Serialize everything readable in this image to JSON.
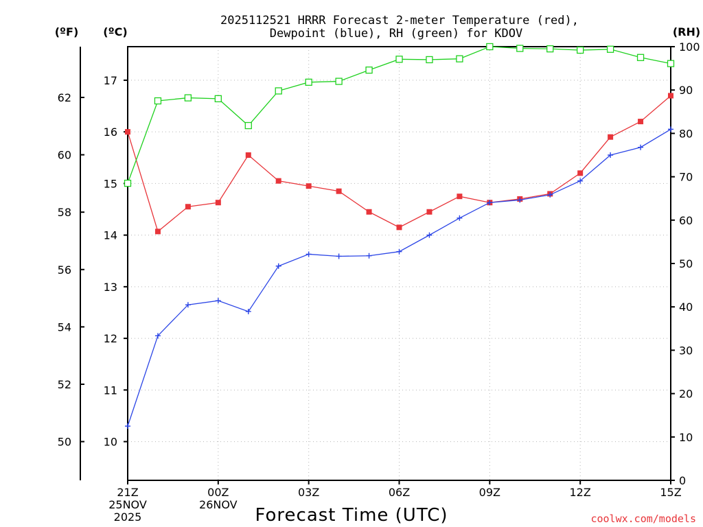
{
  "chart_data": {
    "type": "line",
    "title_lines": [
      "2025112521 HRRR Forecast 2-meter Temperature (red),",
      "Dewpoint (blue), RH (green) for KDOV"
    ],
    "unit_labels": {
      "f": "(ºF)",
      "c": "(ºC)",
      "rh": "(RH)"
    },
    "xlabel": "Forecast Time (UTC)",
    "credit": "coolwx.com/models",
    "x": [
      0,
      1,
      2,
      3,
      4,
      5,
      6,
      7,
      8,
      9,
      10,
      11,
      12,
      13,
      14,
      15,
      16,
      17,
      18
    ],
    "xlim": [
      0,
      18
    ],
    "x_ticks": [
      {
        "x": 0,
        "lines": [
          "21Z",
          "25NOV",
          "2025"
        ]
      },
      {
        "x": 3,
        "lines": [
          "00Z",
          "26NOV"
        ]
      },
      {
        "x": 6,
        "lines": [
          "03Z"
        ]
      },
      {
        "x": 9,
        "lines": [
          "06Z"
        ]
      },
      {
        "x": 12,
        "lines": [
          "09Z"
        ]
      },
      {
        "x": 15,
        "lines": [
          "12Z"
        ]
      },
      {
        "x": 18,
        "lines": [
          "15Z"
        ]
      }
    ],
    "y_celsius": {
      "ylim": [
        9.25,
        17.65
      ],
      "ticks": [
        10,
        11,
        12,
        13,
        14,
        15,
        16,
        17
      ]
    },
    "y_fahrenheit": {
      "ticks": [
        50,
        52,
        54,
        56,
        58,
        60,
        62
      ]
    },
    "y_rh": {
      "ylim": [
        0,
        100
      ],
      "ticks": [
        0,
        10,
        20,
        30,
        40,
        50,
        60,
        70,
        80,
        90,
        100
      ]
    },
    "series": [
      {
        "name": "Temperature",
        "axis": "celsius",
        "color": "#e8353a",
        "marker": "filled-square",
        "values": [
          16.0,
          14.07,
          14.55,
          14.63,
          15.55,
          15.05,
          14.95,
          14.85,
          14.45,
          14.15,
          14.45,
          14.75,
          14.63,
          14.7,
          14.8,
          15.2,
          15.9,
          16.2,
          16.7
        ]
      },
      {
        "name": "Dewpoint",
        "axis": "celsius",
        "color": "#2b45e6",
        "marker": "plus",
        "values": [
          10.3,
          12.05,
          12.65,
          12.73,
          12.52,
          13.4,
          13.63,
          13.59,
          13.6,
          13.68,
          14.0,
          14.33,
          14.63,
          14.68,
          14.78,
          15.05,
          15.55,
          15.7,
          16.05
        ]
      },
      {
        "name": "RH",
        "axis": "rh",
        "color": "#1fd11f",
        "marker": "open-square",
        "values": [
          68.5,
          87.5,
          88.2,
          88.0,
          81.8,
          89.8,
          91.8,
          92.0,
          94.6,
          97.1,
          97.0,
          97.2,
          100.0,
          99.6,
          99.5,
          99.2,
          99.4,
          97.5,
          96.1
        ]
      }
    ]
  }
}
